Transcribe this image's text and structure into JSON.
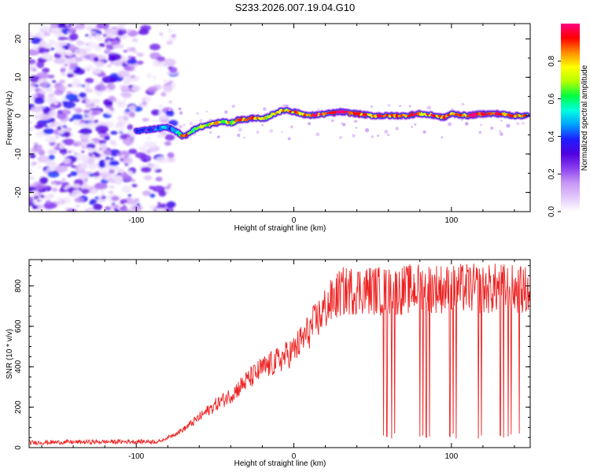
{
  "title": "S233.2026.007.19.04.G10",
  "chart_data": [
    {
      "type": "heatmap",
      "xlabel": "Height of straight line (km)",
      "ylabel": "Frequency (Hz)",
      "xlim": [
        -168,
        150
      ],
      "ylim": [
        -25,
        24
      ],
      "xticks": [
        -100,
        0,
        100
      ],
      "yticks": [
        -20,
        -10,
        0,
        10,
        20
      ],
      "colorbar": {
        "label": "Normalized spectral amplitude",
        "range": [
          0,
          1
        ],
        "ticks": [
          0.0,
          0.2,
          0.4,
          0.6,
          0.8
        ],
        "tick_labels": [
          "0.0",
          "0.2",
          "0.4",
          "0.6",
          "0.8"
        ],
        "colormap": [
          "#ffffff",
          "#e2c8fb",
          "#c696f5",
          "#8a3ff0",
          "#5000e0",
          "#1e1eff",
          "#00a0ff",
          "#00ffe0",
          "#00ff40",
          "#b4ff00",
          "#ffff00",
          "#ff8c00",
          "#ff0000",
          "#ff0080"
        ]
      },
      "signal_track": {
        "x": [
          -100,
          -90,
          -80,
          -75,
          -70,
          -65,
          -60,
          -55,
          -50,
          -45,
          -40,
          -35,
          -30,
          -25,
          -20,
          -15,
          -10,
          -5,
          0,
          10,
          20,
          30,
          40,
          50,
          60,
          70,
          80,
          90,
          95,
          100,
          110,
          120,
          130,
          140,
          148
        ],
        "freq": [
          -4,
          -3.5,
          -3,
          -4,
          -5.5,
          -4,
          -3,
          -2.5,
          -2,
          -1.5,
          -2,
          -1,
          -1,
          -0.5,
          -1,
          0,
          1,
          1.5,
          1,
          0,
          0.5,
          1,
          0.5,
          0,
          0,
          0,
          0.5,
          0,
          -0.5,
          0.5,
          0,
          0.5,
          0.5,
          0,
          0
        ],
        "amplitude": [
          0.3,
          0.35,
          0.45,
          0.6,
          0.85,
          0.7,
          0.65,
          0.75,
          0.8,
          0.7,
          0.75,
          0.8,
          0.85,
          0.8,
          0.75,
          0.8,
          0.85,
          0.8,
          0.85,
          0.9,
          0.95,
          0.95,
          0.9,
          0.85,
          0.9,
          0.9,
          0.85,
          0.9,
          0.85,
          0.85,
          0.9,
          0.9,
          0.9,
          0.85,
          0.8
        ]
      },
      "noise_region": {
        "x_range": [
          -168,
          -82
        ],
        "freq_range": [
          -25,
          24
        ],
        "amplitude_max": 0.2
      }
    },
    {
      "type": "line",
      "xlabel": "Height of straight line (km)",
      "ylabel": "SNR (10 * v/v)",
      "xlim": [
        -168,
        150
      ],
      "ylim": [
        0,
        930
      ],
      "xticks": [
        -100,
        0,
        100
      ],
      "yticks": [
        0,
        200,
        400,
        600,
        800
      ],
      "color": "#ee2222",
      "trend": {
        "x": [
          -168,
          -100,
          -85,
          -70,
          -60,
          -50,
          -40,
          -30,
          -20,
          -10,
          0,
          10,
          20,
          25,
          30,
          40,
          50,
          60,
          70,
          80,
          90,
          100,
          110,
          120,
          130,
          140,
          150
        ],
        "y": [
          25,
          30,
          30,
          90,
          150,
          210,
          260,
          330,
          390,
          430,
          480,
          580,
          690,
          730,
          770,
          780,
          780,
          770,
          780,
          790,
          790,
          780,
          790,
          780,
          790,
          780,
          770
        ]
      },
      "dropouts": [
        {
          "x": 57,
          "y": 60
        },
        {
          "x": 59,
          "y": 55
        },
        {
          "x": 62,
          "y": 45
        },
        {
          "x": 64,
          "y": 70
        },
        {
          "x": 80,
          "y": 55
        },
        {
          "x": 82,
          "y": 60
        },
        {
          "x": 84,
          "y": 50
        },
        {
          "x": 86,
          "y": 55
        },
        {
          "x": 99,
          "y": 55
        },
        {
          "x": 101,
          "y": 70
        },
        {
          "x": 103,
          "y": 45
        },
        {
          "x": 117,
          "y": 45
        },
        {
          "x": 119,
          "y": 60
        },
        {
          "x": 131,
          "y": 60
        },
        {
          "x": 133,
          "y": 50
        },
        {
          "x": 136,
          "y": 55
        },
        {
          "x": 138,
          "y": 65
        },
        {
          "x": 143,
          "y": 70
        }
      ]
    }
  ]
}
